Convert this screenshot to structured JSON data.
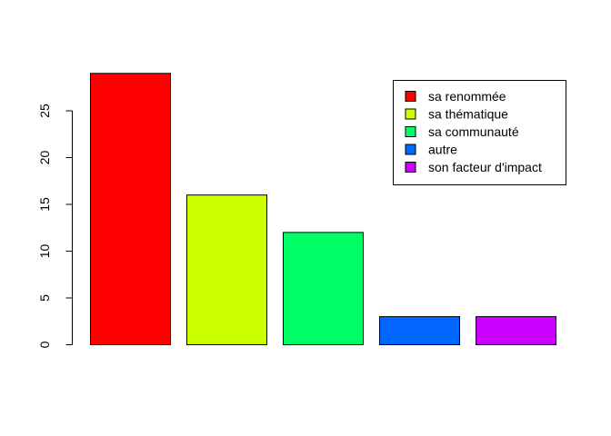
{
  "chart_data": {
    "type": "bar",
    "categories": [
      "sa renommée",
      "sa thématique",
      "sa communauté",
      "autre",
      "son facteur d'impact"
    ],
    "values": [
      29,
      16,
      12,
      3,
      3
    ],
    "colors": [
      "#ff0000",
      "#ccff00",
      "#00ff66",
      "#0066ff",
      "#cc00ff"
    ],
    "title": "",
    "xlabel": "",
    "ylabel": "",
    "ylim": [
      0,
      30
    ],
    "yticks": [
      0,
      5,
      10,
      15,
      20,
      25
    ],
    "grid": false,
    "legend_position": "top-right",
    "legend": [
      "sa renommée",
      "sa thématique",
      "sa communauté",
      "autre",
      "son facteur d'impact"
    ]
  }
}
